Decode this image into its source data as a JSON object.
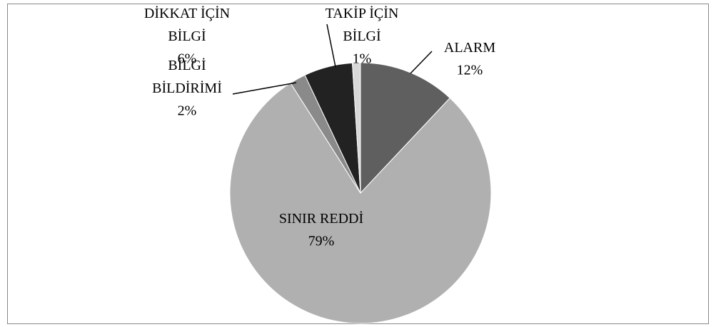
{
  "chart_data": {
    "type": "pie",
    "categories": [
      "ALARM",
      "SINIR REDDİ",
      "BİLGİ BİLDİRİMİ",
      "DİKKAT İÇİN BİLGİ",
      "TAKİP İÇİN BİLGİ"
    ],
    "values": [
      12,
      79,
      2,
      6,
      1
    ],
    "value_labels": [
      "12%",
      "79%",
      "2%",
      "6%",
      "1%"
    ],
    "colors": [
      "#5f5f5f",
      "#b0b0b0",
      "#8a8a8a",
      "#222222",
      "#d8d8d8"
    ]
  }
}
